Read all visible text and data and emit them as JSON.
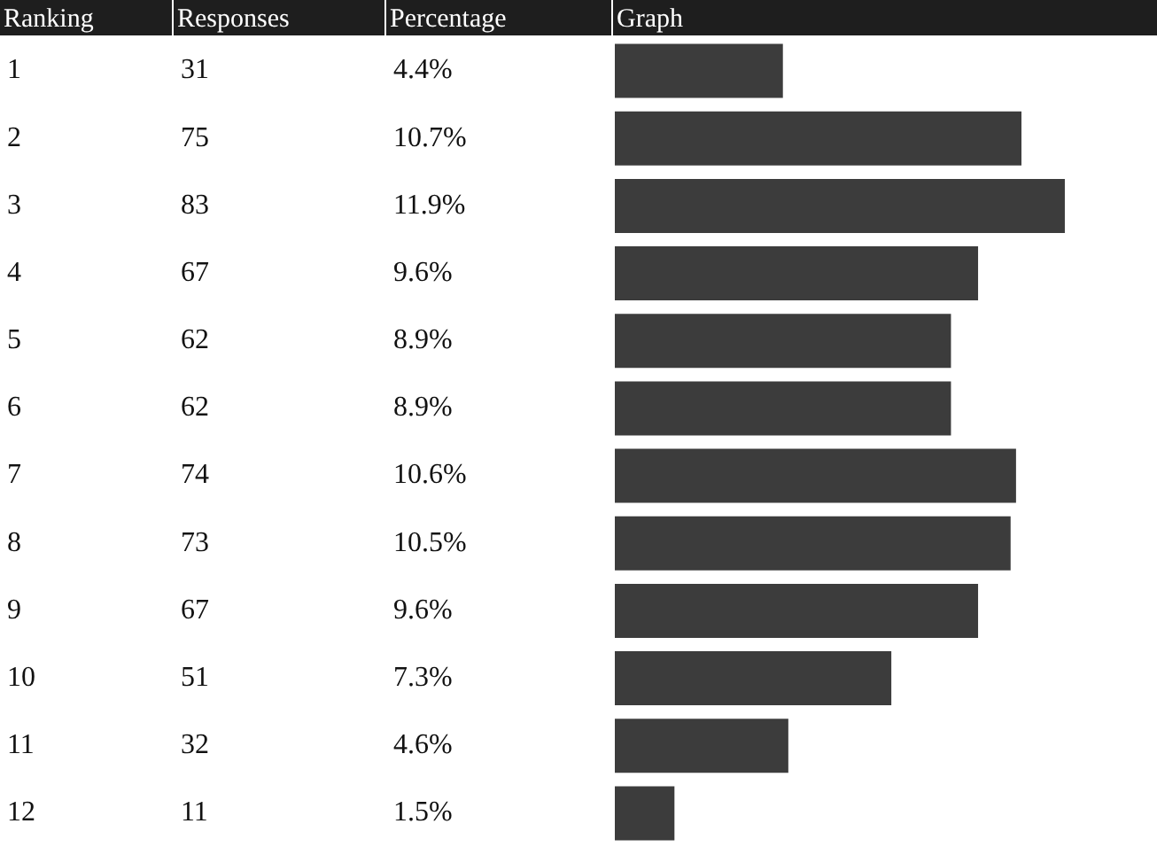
{
  "chart_data": {
    "type": "bar",
    "orientation": "horizontal",
    "ylabel": "Ranking",
    "annotations": [
      "Responses",
      "Percentage",
      "Graph",
      "4.4%",
      "10.7%",
      "11.9%",
      "9.6%",
      "8.9%",
      "8.9%",
      "10.6%",
      "10.5%",
      "9.6%",
      "7.3%",
      "4.6%",
      "1.5%"
    ],
    "categories": [
      "1",
      "2",
      "3",
      "4",
      "5",
      "6",
      "7",
      "8",
      "9",
      "10",
      "11",
      "12"
    ],
    "values": [
      31,
      75,
      83,
      67,
      62,
      62,
      74,
      73,
      67,
      51,
      32,
      11
    ],
    "data_labels": true,
    "color": "#3c3c3c",
    "legend": false,
    "grid": false,
    "tick_labels": false
  }
}
